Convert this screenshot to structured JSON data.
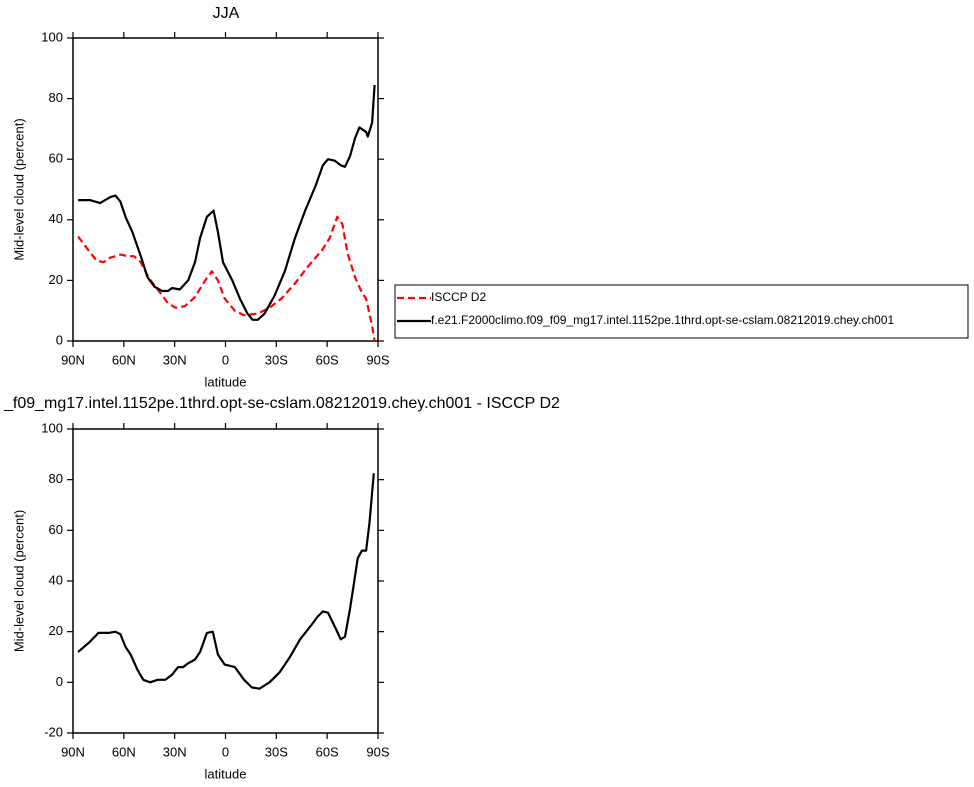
{
  "chart_data": [
    {
      "type": "line",
      "title": "JJA",
      "xlabel": "latitude",
      "ylabel": "Mid-level cloud (percent)",
      "xlim": [
        90,
        -90
      ],
      "xticks": [
        {
          "value": 90,
          "label": "90N"
        },
        {
          "value": 60,
          "label": "60N"
        },
        {
          "value": 30,
          "label": "30N"
        },
        0,
        {
          "value": -30,
          "label": "30S"
        },
        {
          "value": -60,
          "label": "60S"
        },
        {
          "value": -90,
          "label": "90S"
        }
      ],
      "ylim": [
        0,
        100
      ],
      "yticks": [
        0,
        20,
        40,
        60,
        80,
        100
      ],
      "legend": "right",
      "series": [
        {
          "name": "ISCCP D2",
          "color": "#ff0000",
          "dash": true,
          "x": [
            87,
            81,
            76,
            72,
            68,
            62,
            57.5,
            54,
            50,
            45.5,
            40,
            34,
            29.5,
            24,
            18,
            12,
            8,
            4.5,
            0.5,
            -5.5,
            -11,
            -19,
            -26,
            -33,
            -41,
            -48.5,
            -57,
            -61.5,
            -66,
            -69,
            -72,
            -76.5,
            -80.5,
            -83,
            -86.5,
            -88
          ],
          "values": [
            34.5,
            30,
            26.5,
            26,
            27.5,
            28.5,
            28,
            28,
            26,
            21,
            17,
            12.5,
            11,
            11.5,
            14.5,
            20,
            23,
            20,
            14,
            10,
            8.5,
            9,
            11,
            14,
            19,
            24.5,
            30,
            34,
            41,
            38.5,
            29,
            21,
            16,
            14,
            5,
            0
          ]
        },
        {
          "name": "f.e21.F2000climo.f09_f09_mg17.intel.1152pe.1thrd.opt-se-cslam.08212019.chey.ch001",
          "color": "#000000",
          "dash": false,
          "x": [
            87,
            80,
            74,
            68,
            65,
            62,
            59,
            55,
            50,
            46,
            42,
            37.5,
            34,
            31.5,
            27,
            22,
            18,
            15,
            11,
            7,
            4.5,
            1.5,
            -4,
            -8.5,
            -13,
            -16,
            -19,
            -23,
            -29,
            -35,
            -41,
            -47,
            -53,
            -57.5,
            -60.5,
            -64.5,
            -68,
            -70.5,
            -73.5,
            -76.5,
            -79,
            -83,
            -84,
            -86.5,
            -88
          ],
          "values": [
            46.5,
            46.5,
            45.5,
            47.5,
            48,
            46,
            41,
            36,
            28,
            21,
            18,
            16.5,
            16.5,
            17.5,
            17,
            20,
            26,
            34,
            41,
            43,
            36,
            26,
            20,
            14,
            9,
            7,
            7,
            9,
            15,
            23,
            34,
            43,
            51,
            58,
            60,
            59.5,
            58,
            57.5,
            61,
            67,
            70.5,
            69,
            67.5,
            72,
            84.5
          ]
        }
      ]
    },
    {
      "type": "line",
      "title": "_f09_mg17.intel.1152pe.1thrd.opt-se-cslam.08212019.chey.ch001 - ISCCP D2",
      "xlabel": "latitude",
      "ylabel": "Mid-level cloud (percent)",
      "xlim": [
        90,
        -90
      ],
      "xticks": [
        {
          "value": 90,
          "label": "90N"
        },
        {
          "value": 60,
          "label": "60N"
        },
        {
          "value": 30,
          "label": "30N"
        },
        0,
        {
          "value": -30,
          "label": "30S"
        },
        {
          "value": -60,
          "label": "60S"
        },
        {
          "value": -90,
          "label": "90S"
        }
      ],
      "ylim": [
        -20,
        100
      ],
      "yticks": [
        -20,
        0,
        20,
        40,
        60,
        80,
        100
      ],
      "series": [
        {
          "color": "#000000",
          "dash": false,
          "x": [
            87,
            80,
            75,
            69,
            65,
            62,
            59,
            56,
            52,
            48.5,
            44.5,
            40,
            35.5,
            31.5,
            28,
            25,
            22,
            18,
            15,
            11,
            7.5,
            4.5,
            0.5,
            -5.5,
            -11,
            -15.5,
            -20,
            -26,
            -32,
            -38,
            -44,
            -50,
            -54.5,
            -57.5,
            -60.5,
            -64.5,
            -68,
            -70.5,
            -73.5,
            -76,
            -78,
            -80.5,
            -83,
            -85,
            -87.5
          ],
          "values": [
            12,
            16,
            19.5,
            19.5,
            20,
            19,
            14,
            11,
            5,
            1,
            0,
            1,
            1,
            3,
            6,
            6,
            7.5,
            9,
            12,
            19.5,
            20,
            11,
            7,
            6,
            1,
            -2,
            -2.5,
            0,
            4,
            10,
            17,
            22,
            26,
            28,
            27.5,
            22,
            17,
            18,
            29,
            40,
            49,
            52,
            52,
            63,
            82.5
          ]
        }
      ]
    }
  ]
}
